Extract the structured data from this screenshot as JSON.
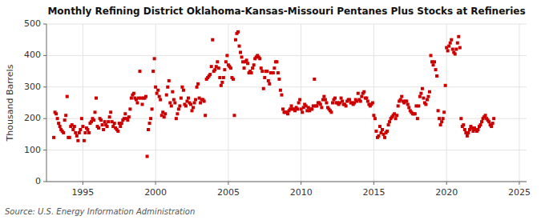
{
  "chart_data": {
    "type": "scatter",
    "title": "Monthly Refining District Oklahoma-Kansas-Missouri Pentanes Plus Stocks at Refineries",
    "ylabel": "Thousand Barrels",
    "source": "Source: U.S. Energy Information Administration",
    "color": "#cc0000",
    "marker": "square",
    "grid": true,
    "xlim": [
      1992.5,
      2025.5
    ],
    "ylim": [
      0,
      500
    ],
    "yticks": [
      0,
      100,
      200,
      300,
      400,
      500
    ],
    "xticks": [
      1995,
      2000,
      2005,
      2010,
      2015,
      2020,
      2025
    ],
    "x": [
      1993.0,
      1993.083,
      1993.167,
      1993.25,
      1993.333,
      1993.417,
      1993.5,
      1993.583,
      1993.667,
      1993.75,
      1993.833,
      1993.917,
      1994.0,
      1994.083,
      1994.167,
      1994.25,
      1994.333,
      1994.417,
      1994.5,
      1994.583,
      1994.667,
      1994.75,
      1994.833,
      1994.917,
      1995.0,
      1995.083,
      1995.167,
      1995.25,
      1995.333,
      1995.417,
      1995.5,
      1995.583,
      1995.667,
      1995.75,
      1995.833,
      1995.917,
      1996.0,
      1996.083,
      1996.167,
      1996.25,
      1996.333,
      1996.417,
      1996.5,
      1996.583,
      1996.667,
      1996.75,
      1996.833,
      1996.917,
      1997.0,
      1997.083,
      1997.167,
      1997.25,
      1997.333,
      1997.417,
      1997.5,
      1997.583,
      1997.667,
      1997.75,
      1997.833,
      1997.917,
      1998.0,
      1998.083,
      1998.167,
      1998.25,
      1998.333,
      1998.417,
      1998.5,
      1998.583,
      1998.667,
      1998.75,
      1998.833,
      1998.917,
      1999.0,
      1999.083,
      1999.167,
      1999.25,
      1999.333,
      1999.417,
      1999.5,
      1999.583,
      1999.667,
      1999.75,
      1999.833,
      1999.917,
      2000.0,
      2000.083,
      2000.167,
      2000.25,
      2000.333,
      2000.417,
      2000.5,
      2000.583,
      2000.667,
      2000.75,
      2000.833,
      2000.917,
      2001.0,
      2001.083,
      2001.167,
      2001.25,
      2001.333,
      2001.417,
      2001.5,
      2001.583,
      2001.667,
      2001.75,
      2001.833,
      2001.917,
      2002.0,
      2002.083,
      2002.167,
      2002.25,
      2002.333,
      2002.417,
      2002.5,
      2002.583,
      2002.667,
      2002.75,
      2002.833,
      2002.917,
      2003.0,
      2003.083,
      2003.167,
      2003.25,
      2003.333,
      2003.417,
      2003.5,
      2003.583,
      2003.667,
      2003.75,
      2003.833,
      2003.917,
      2004.0,
      2004.083,
      2004.167,
      2004.25,
      2004.333,
      2004.417,
      2004.5,
      2004.583,
      2004.667,
      2004.75,
      2004.833,
      2004.917,
      2005.0,
      2005.083,
      2005.167,
      2005.25,
      2005.333,
      2005.417,
      2005.5,
      2005.583,
      2005.667,
      2005.75,
      2005.833,
      2005.917,
      2006.0,
      2006.083,
      2006.167,
      2006.25,
      2006.333,
      2006.417,
      2006.5,
      2006.583,
      2006.667,
      2006.75,
      2006.833,
      2006.917,
      2007.0,
      2007.083,
      2007.167,
      2007.25,
      2007.333,
      2007.417,
      2007.5,
      2007.583,
      2007.667,
      2007.75,
      2007.833,
      2007.917,
      2008.0,
      2008.083,
      2008.167,
      2008.25,
      2008.333,
      2008.417,
      2008.5,
      2008.583,
      2008.667,
      2008.75,
      2008.833,
      2008.917,
      2009.0,
      2009.083,
      2009.167,
      2009.25,
      2009.333,
      2009.417,
      2009.5,
      2009.583,
      2009.667,
      2009.75,
      2009.833,
      2009.917,
      2010.0,
      2010.083,
      2010.167,
      2010.25,
      2010.333,
      2010.417,
      2010.5,
      2010.583,
      2010.667,
      2010.75,
      2010.833,
      2010.917,
      2011.0,
      2011.083,
      2011.167,
      2011.25,
      2011.333,
      2011.417,
      2011.5,
      2011.583,
      2011.667,
      2011.75,
      2011.833,
      2011.917,
      2012.0,
      2012.083,
      2012.167,
      2012.25,
      2012.333,
      2012.417,
      2012.5,
      2012.583,
      2012.667,
      2012.75,
      2012.833,
      2012.917,
      2013.0,
      2013.083,
      2013.167,
      2013.25,
      2013.333,
      2013.417,
      2013.5,
      2013.583,
      2013.667,
      2013.75,
      2013.833,
      2013.917,
      2014.0,
      2014.083,
      2014.167,
      2014.25,
      2014.333,
      2014.417,
      2014.5,
      2014.583,
      2014.667,
      2014.75,
      2014.833,
      2014.917,
      2015.0,
      2015.083,
      2015.167,
      2015.25,
      2015.333,
      2015.417,
      2015.5,
      2015.583,
      2015.667,
      2015.75,
      2015.833,
      2015.917,
      2016.0,
      2016.083,
      2016.167,
      2016.25,
      2016.333,
      2016.417,
      2016.5,
      2016.583,
      2016.667,
      2016.75,
      2016.833,
      2016.917,
      2017.0,
      2017.083,
      2017.167,
      2017.25,
      2017.333,
      2017.417,
      2017.5,
      2017.583,
      2017.667,
      2017.75,
      2017.833,
      2017.917,
      2018.0,
      2018.083,
      2018.167,
      2018.25,
      2018.333,
      2018.417,
      2018.5,
      2018.583,
      2018.667,
      2018.75,
      2018.833,
      2018.917,
      2019.0,
      2019.083,
      2019.167,
      2019.25,
      2019.333,
      2019.417,
      2019.5,
      2019.583,
      2019.667,
      2019.75,
      2019.833,
      2019.917,
      2020.0,
      2020.083,
      2020.167,
      2020.25,
      2020.333,
      2020.417,
      2020.5,
      2020.583,
      2020.667,
      2020.75,
      2020.833,
      2020.917,
      2021.0,
      2021.083,
      2021.167,
      2021.25,
      2021.333,
      2021.417,
      2021.5,
      2021.583,
      2021.667,
      2021.75,
      2021.833,
      2021.917,
      2022.0,
      2022.083,
      2022.167,
      2022.25,
      2022.333,
      2022.417,
      2022.5,
      2022.583,
      2022.667,
      2022.75,
      2022.833,
      2022.917,
      2023.0,
      2023.083,
      2023.167,
      2023.25
    ],
    "values": [
      140,
      220,
      215,
      200,
      185,
      175,
      165,
      160,
      155,
      195,
      210,
      270,
      140,
      140,
      175,
      180,
      165,
      175,
      155,
      145,
      130,
      155,
      165,
      200,
      175,
      130,
      155,
      170,
      165,
      155,
      185,
      190,
      200,
      195,
      220,
      265,
      175,
      170,
      200,
      195,
      180,
      165,
      190,
      180,
      175,
      190,
      205,
      220,
      190,
      175,
      185,
      170,
      165,
      160,
      185,
      175,
      185,
      195,
      200,
      215,
      200,
      195,
      205,
      230,
      265,
      275,
      280,
      265,
      260,
      250,
      265,
      350,
      265,
      245,
      265,
      265,
      270,
      80,
      165,
      185,
      200,
      230,
      350,
      390,
      300,
      280,
      290,
      270,
      260,
      210,
      220,
      205,
      215,
      275,
      300,
      320,
      250,
      240,
      285,
      260,
      250,
      200,
      215,
      230,
      240,
      265,
      300,
      290,
      245,
      240,
      255,
      265,
      250,
      245,
      225,
      235,
      250,
      260,
      300,
      310,
      265,
      250,
      260,
      260,
      255,
      210,
      325,
      330,
      335,
      340,
      365,
      450,
      350,
      355,
      365,
      380,
      360,
      330,
      305,
      315,
      330,
      355,
      380,
      400,
      370,
      365,
      360,
      330,
      325,
      210,
      450,
      470,
      475,
      430,
      410,
      395,
      380,
      360,
      380,
      385,
      375,
      345,
      350,
      345,
      360,
      370,
      390,
      395,
      400,
      395,
      390,
      360,
      350,
      295,
      330,
      350,
      350,
      320,
      310,
      345,
      345,
      345,
      360,
      380,
      380,
      345,
      325,
      290,
      275,
      230,
      220,
      220,
      220,
      215,
      225,
      230,
      240,
      230,
      230,
      225,
      235,
      230,
      250,
      260,
      230,
      220,
      235,
      245,
      240,
      225,
      235,
      225,
      230,
      230,
      240,
      325,
      240,
      240,
      250,
      250,
      245,
      235,
      260,
      270,
      260,
      250,
      235,
      230,
      225,
      220,
      250,
      260,
      265,
      250,
      250,
      245,
      250,
      265,
      255,
      245,
      245,
      240,
      255,
      260,
      260,
      250,
      250,
      245,
      250,
      260,
      255,
      280,
      260,
      255,
      270,
      280,
      285,
      265,
      265,
      255,
      245,
      240,
      245,
      250,
      210,
      200,
      160,
      140,
      145,
      175,
      155,
      165,
      150,
      140,
      155,
      160,
      180,
      190,
      200,
      205,
      210,
      215,
      200,
      210,
      240,
      255,
      260,
      270,
      255,
      250,
      255,
      255,
      245,
      235,
      225,
      220,
      215,
      215,
      215,
      240,
      200,
      240,
      270,
      280,
      295,
      265,
      250,
      245,
      260,
      270,
      285,
      400,
      380,
      370,
      380,
      355,
      335,
      225,
      200,
      180,
      190,
      200,
      220,
      305,
      425,
      415,
      430,
      440,
      450,
      420,
      410,
      405,
      420,
      440,
      460,
      425,
      200,
      175,
      180,
      165,
      155,
      145,
      155,
      165,
      175,
      170,
      160,
      170,
      165,
      160,
      165,
      175,
      180,
      190,
      200,
      205,
      210,
      200,
      195,
      190,
      180,
      175,
      185,
      200
    ]
  }
}
